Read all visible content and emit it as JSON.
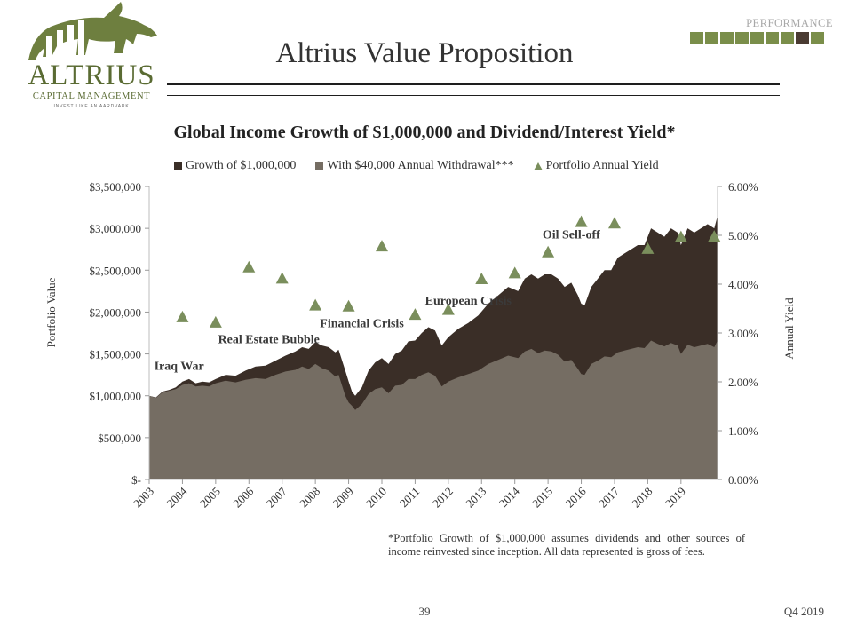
{
  "header": {
    "logo_word": "ALTRIUS",
    "logo_subtitle": "CAPITAL MANAGEMENT",
    "logo_tagline": "INVEST LIKE AN AARDVARK",
    "section_label": "PERFORMANCE",
    "progress_total": 9,
    "progress_active_index": 7,
    "title": "Altrius Value Proposition"
  },
  "chart_data": {
    "type": "area",
    "title": "Global Income Growth of $1,000,000 and Dividend/Interest Yield*",
    "ylabel": "Portfolio Value",
    "y2label": "Annual Yield",
    "ylim": [
      0,
      3500000
    ],
    "y2lim": [
      0,
      6
    ],
    "xlim": [
      2003,
      2020.1
    ],
    "yticks": [
      {
        "value": 0,
        "label": "$-"
      },
      {
        "value": 500000,
        "label": "$500,000"
      },
      {
        "value": 1000000,
        "label": "$1,000,000"
      },
      {
        "value": 1500000,
        "label": "$1,500,000"
      },
      {
        "value": 2000000,
        "label": "$2,000,000"
      },
      {
        "value": 2500000,
        "label": "$2,500,000"
      },
      {
        "value": 3000000,
        "label": "$3,000,000"
      },
      {
        "value": 3500000,
        "label": "$3,500,000"
      }
    ],
    "y2ticks": [
      {
        "value": 0,
        "label": "0.00%"
      },
      {
        "value": 1,
        "label": "1.00%"
      },
      {
        "value": 2,
        "label": "2.00%"
      },
      {
        "value": 3,
        "label": "3.00%"
      },
      {
        "value": 4,
        "label": "4.00%"
      },
      {
        "value": 5,
        "label": "5.00%"
      },
      {
        "value": 6,
        "label": "6.00%"
      }
    ],
    "xticks": [
      "2003",
      "2004",
      "2005",
      "2006",
      "2007",
      "2008",
      "2009",
      "2010",
      "2011",
      "2012",
      "2013",
      "2014",
      "2015",
      "2016",
      "2017",
      "2018",
      "2019"
    ],
    "legend_position": "top",
    "series": [
      {
        "name": "Growth of $1,000,000",
        "color": "#3a2e27",
        "x": [
          2003.0,
          2003.2,
          2003.4,
          2003.6,
          2003.8,
          2004.0,
          2004.2,
          2004.4,
          2004.6,
          2004.8,
          2005.0,
          2005.3,
          2005.6,
          2005.9,
          2006.2,
          2006.5,
          2006.8,
          2007.1,
          2007.4,
          2007.6,
          2007.8,
          2008.0,
          2008.2,
          2008.4,
          2008.6,
          2008.7,
          2008.9,
          2009.0,
          2009.1,
          2009.2,
          2009.4,
          2009.6,
          2009.8,
          2010.0,
          2010.2,
          2010.4,
          2010.6,
          2010.8,
          2011.0,
          2011.2,
          2011.4,
          2011.6,
          2011.8,
          2012.0,
          2012.3,
          2012.6,
          2012.9,
          2013.2,
          2013.5,
          2013.8,
          2014.1,
          2014.3,
          2014.5,
          2014.7,
          2014.9,
          2015.1,
          2015.3,
          2015.5,
          2015.7,
          2015.9,
          2016.0,
          2016.1,
          2016.3,
          2016.5,
          2016.7,
          2016.9,
          2017.1,
          2017.3,
          2017.5,
          2017.7,
          2017.9,
          2018.1,
          2018.3,
          2018.5,
          2018.7,
          2018.9,
          2019.0,
          2019.2,
          2019.4,
          2019.6,
          2019.8,
          2020.0,
          2020.1
        ],
        "values": [
          1000000,
          980000,
          1050000,
          1070000,
          1100000,
          1170000,
          1200000,
          1150000,
          1170000,
          1160000,
          1200000,
          1250000,
          1240000,
          1300000,
          1350000,
          1360000,
          1420000,
          1480000,
          1530000,
          1580000,
          1560000,
          1640000,
          1600000,
          1580000,
          1520000,
          1550000,
          1300000,
          1170000,
          1050000,
          1000000,
          1100000,
          1300000,
          1400000,
          1450000,
          1380000,
          1500000,
          1540000,
          1650000,
          1660000,
          1750000,
          1820000,
          1780000,
          1600000,
          1700000,
          1800000,
          1870000,
          1960000,
          2100000,
          2200000,
          2300000,
          2250000,
          2400000,
          2450000,
          2400000,
          2450000,
          2450000,
          2400000,
          2300000,
          2350000,
          2200000,
          2100000,
          2080000,
          2300000,
          2400000,
          2500000,
          2500000,
          2650000,
          2700000,
          2750000,
          2800000,
          2800000,
          3000000,
          2950000,
          2900000,
          3000000,
          2950000,
          2800000,
          3000000,
          2950000,
          3000000,
          3050000,
          3000000,
          3150000
        ]
      },
      {
        "name": "With $40,000 Annual Withdrawal***",
        "color": "#756d63",
        "x": [
          2003.0,
          2003.2,
          2003.4,
          2003.6,
          2003.8,
          2004.0,
          2004.2,
          2004.4,
          2004.6,
          2004.8,
          2005.0,
          2005.3,
          2005.6,
          2005.9,
          2006.2,
          2006.5,
          2006.8,
          2007.1,
          2007.4,
          2007.6,
          2007.8,
          2008.0,
          2008.2,
          2008.4,
          2008.6,
          2008.7,
          2008.9,
          2009.0,
          2009.1,
          2009.2,
          2009.4,
          2009.6,
          2009.8,
          2010.0,
          2010.2,
          2010.4,
          2010.6,
          2010.8,
          2011.0,
          2011.2,
          2011.4,
          2011.6,
          2011.8,
          2012.0,
          2012.3,
          2012.6,
          2012.9,
          2013.2,
          2013.5,
          2013.8,
          2014.1,
          2014.3,
          2014.5,
          2014.7,
          2014.9,
          2015.1,
          2015.3,
          2015.5,
          2015.7,
          2015.9,
          2016.0,
          2016.1,
          2016.3,
          2016.5,
          2016.7,
          2016.9,
          2017.1,
          2017.3,
          2017.5,
          2017.7,
          2017.9,
          2018.1,
          2018.3,
          2018.5,
          2018.7,
          2018.9,
          2019.0,
          2019.2,
          2019.4,
          2019.6,
          2019.8,
          2020.0,
          2020.1
        ],
        "values": [
          1000000,
          975000,
          1040000,
          1060000,
          1080000,
          1130000,
          1150000,
          1110000,
          1120000,
          1110000,
          1150000,
          1180000,
          1160000,
          1190000,
          1210000,
          1200000,
          1250000,
          1290000,
          1310000,
          1350000,
          1320000,
          1380000,
          1330000,
          1300000,
          1230000,
          1250000,
          1000000,
          920000,
          880000,
          830000,
          900000,
          1020000,
          1080000,
          1100000,
          1030000,
          1120000,
          1130000,
          1200000,
          1200000,
          1250000,
          1280000,
          1240000,
          1110000,
          1170000,
          1220000,
          1260000,
          1300000,
          1380000,
          1430000,
          1480000,
          1450000,
          1530000,
          1560000,
          1510000,
          1540000,
          1530000,
          1490000,
          1410000,
          1430000,
          1320000,
          1260000,
          1250000,
          1380000,
          1420000,
          1470000,
          1460000,
          1520000,
          1540000,
          1560000,
          1580000,
          1570000,
          1660000,
          1620000,
          1590000,
          1630000,
          1600000,
          1500000,
          1610000,
          1580000,
          1600000,
          1620000,
          1580000,
          1660000
        ]
      },
      {
        "name": "Portfolio Annual Yield",
        "color": "#7a8e5c",
        "axis": "y2",
        "x": [
          2004,
          2005,
          2006,
          2007,
          2008,
          2009,
          2010,
          2011,
          2012,
          2013,
          2014,
          2015,
          2016,
          2017,
          2018,
          2019,
          2020
        ],
        "values": [
          3.33,
          3.22,
          4.35,
          4.12,
          3.57,
          3.55,
          4.78,
          3.38,
          3.48,
          4.11,
          4.23,
          4.66,
          5.28,
          5.25,
          4.73,
          4.97,
          4.98
        ]
      }
    ],
    "annotations": [
      {
        "text": "Iraq War",
        "x": 2003.9,
        "y": 1310000
      },
      {
        "text": "Real Estate Bubble",
        "x": 2006.6,
        "y": 1630000
      },
      {
        "text": "Financial Crisis",
        "x": 2009.4,
        "y": 1820000
      },
      {
        "text": "European Crisis",
        "x": 2012.6,
        "y": 2090000
      },
      {
        "text": "Oil Sell-off",
        "x": 2015.7,
        "y": 2880000
      }
    ]
  },
  "footer": {
    "footnote": "*Portfolio Growth of $1,000,000 assumes dividends and other sources of income reinvested since inception.  All data represented is gross of fees.",
    "page_number": "39",
    "quarter": "Q4 2019"
  }
}
